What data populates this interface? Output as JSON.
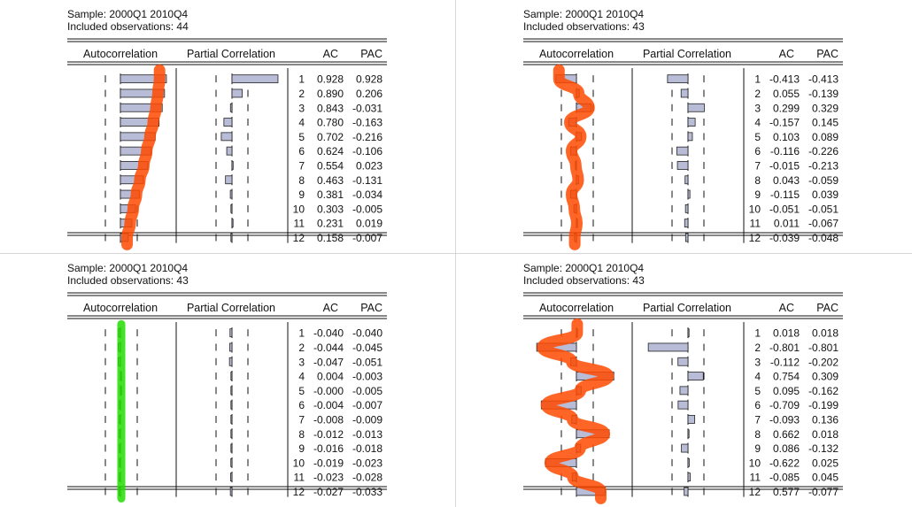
{
  "headers": {
    "col_ac_title": "Autocorrelation",
    "col_pac_title": "Partial Correlation",
    "col_ac": "AC",
    "col_pac": "PAC"
  },
  "colors": {
    "bar_fill": "#b8bcd6",
    "bar_stroke": "#222222",
    "annotation_orange": "#ff4a00",
    "annotation_green": "#22dd00"
  },
  "chart_data": [
    {
      "type": "correlogram",
      "sample": "Sample: 2000Q1 2010Q4",
      "observations": "Included observations: 44",
      "lags": [
        1,
        2,
        3,
        4,
        5,
        6,
        7,
        8,
        9,
        10,
        11,
        12
      ],
      "ac": [
        0.928,
        0.89,
        0.843,
        0.78,
        0.702,
        0.624,
        0.554,
        0.463,
        0.381,
        0.303,
        0.231,
        0.158
      ],
      "pac": [
        0.928,
        0.206,
        -0.031,
        -0.163,
        -0.216,
        -0.106,
        0.023,
        -0.131,
        -0.034,
        -0.005,
        0.019,
        -0.007
      ],
      "ac_text": [
        "0.928",
        "0.890",
        "0.843",
        "0.780",
        "0.702",
        "0.624",
        "0.554",
        "0.463",
        "0.381",
        "0.303",
        "0.231",
        "0.158"
      ],
      "pac_text": [
        "0.928",
        "0.206",
        "-0.031",
        "-0.163",
        "-0.216",
        "-0.106",
        "0.023",
        "-0.131",
        "-0.034",
        "-0.005",
        "0.019",
        "-0.007"
      ],
      "annotation": "orange"
    },
    {
      "type": "correlogram",
      "sample": "Sample: 2000Q1 2010Q4",
      "observations": "Included observations: 43",
      "lags": [
        1,
        2,
        3,
        4,
        5,
        6,
        7,
        8,
        9,
        10,
        11,
        12
      ],
      "ac": [
        -0.413,
        0.055,
        0.299,
        -0.157,
        0.103,
        -0.116,
        -0.015,
        0.043,
        -0.115,
        -0.051,
        0.011,
        -0.039
      ],
      "pac": [
        -0.413,
        -0.139,
        0.329,
        0.145,
        0.089,
        -0.226,
        -0.213,
        -0.059,
        0.039,
        -0.051,
        -0.067,
        -0.048
      ],
      "ac_text": [
        "-0.413",
        "0.055",
        "0.299",
        "-0.157",
        "0.103",
        "-0.116",
        "-0.015",
        "0.043",
        "-0.115",
        "-0.051",
        "0.011",
        "-0.039"
      ],
      "pac_text": [
        "-0.413",
        "-0.139",
        "0.329",
        "0.145",
        "0.089",
        "-0.226",
        "-0.213",
        "-0.059",
        "0.039",
        "-0.051",
        "-0.067",
        "-0.048"
      ],
      "annotation": "orange"
    },
    {
      "type": "correlogram",
      "sample": "Sample: 2000Q1 2010Q4",
      "observations": "Included observations: 43",
      "lags": [
        1,
        2,
        3,
        4,
        5,
        6,
        7,
        8,
        9,
        10,
        11,
        12
      ],
      "ac": [
        -0.04,
        -0.044,
        -0.047,
        0.004,
        -0.0,
        -0.004,
        -0.008,
        -0.012,
        -0.016,
        -0.019,
        -0.023,
        -0.027
      ],
      "pac": [
        -0.04,
        -0.045,
        -0.051,
        -0.003,
        -0.005,
        -0.007,
        -0.009,
        -0.013,
        -0.018,
        -0.023,
        -0.028,
        -0.033
      ],
      "ac_text": [
        "-0.040",
        "-0.044",
        "-0.047",
        "0.004",
        "-0.000",
        "-0.004",
        "-0.008",
        "-0.012",
        "-0.016",
        "-0.019",
        "-0.023",
        "-0.027"
      ],
      "pac_text": [
        "-0.040",
        "-0.045",
        "-0.051",
        "-0.003",
        "-0.005",
        "-0.007",
        "-0.009",
        "-0.013",
        "-0.018",
        "-0.023",
        "-0.028",
        "-0.033"
      ],
      "annotation": "green"
    },
    {
      "type": "correlogram",
      "sample": "Sample: 2000Q1 2010Q4",
      "observations": "Included observations: 43",
      "lags": [
        1,
        2,
        3,
        4,
        5,
        6,
        7,
        8,
        9,
        10,
        11,
        12
      ],
      "ac": [
        0.018,
        -0.801,
        -0.112,
        0.754,
        0.095,
        -0.709,
        -0.093,
        0.662,
        0.086,
        -0.622,
        -0.085,
        0.577
      ],
      "pac": [
        0.018,
        -0.801,
        -0.202,
        0.309,
        -0.162,
        -0.199,
        0.136,
        0.018,
        -0.132,
        0.025,
        0.045,
        -0.077
      ],
      "ac_text": [
        "0.018",
        "-0.801",
        "-0.112",
        "0.754",
        "0.095",
        "-0.709",
        "-0.093",
        "0.662",
        "0.086",
        "-0.622",
        "-0.085",
        "0.577"
      ],
      "pac_text": [
        "0.018",
        "-0.801",
        "-0.202",
        "0.309",
        "-0.162",
        "-0.199",
        "0.136",
        "0.018",
        "-0.132",
        "0.025",
        "0.045",
        "-0.077"
      ],
      "annotation": "orange"
    }
  ]
}
